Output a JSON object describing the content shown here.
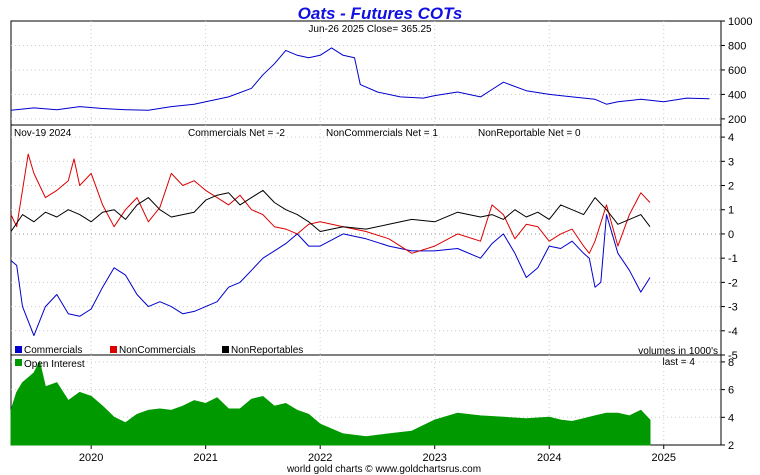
{
  "chart_data": [
    {
      "type": "line",
      "panel": "price",
      "title": "Oats - Futures COTs",
      "subtitle": "Jun-26  2025   Close= 365.25",
      "ylim": [
        150,
        1000
      ],
      "yticks": [
        "200",
        "400",
        "600",
        "800",
        "1000"
      ],
      "series": [
        {
          "color": "#0000cc",
          "x": [
            2019.3,
            2019.5,
            2019.7,
            2019.9,
            2020.1,
            2020.3,
            2020.5,
            2020.7,
            2020.9,
            2021.0,
            2021.2,
            2021.4,
            2021.5,
            2021.6,
            2021.7,
            2021.8,
            2021.9,
            2022.0,
            2022.1,
            2022.2,
            2022.3,
            2022.35,
            2022.5,
            2022.7,
            2022.9,
            2023.0,
            2023.2,
            2023.4,
            2023.5,
            2023.6,
            2023.8,
            2024.0,
            2024.2,
            2024.4,
            2024.5,
            2024.6,
            2024.8,
            2025.0,
            2025.2,
            2025.4
          ],
          "y": [
            270,
            290,
            275,
            300,
            285,
            275,
            270,
            300,
            320,
            340,
            380,
            450,
            560,
            650,
            760,
            720,
            700,
            720,
            780,
            720,
            700,
            480,
            420,
            380,
            370,
            390,
            420,
            380,
            440,
            500,
            430,
            400,
            380,
            360,
            320,
            340,
            360,
            340,
            370,
            365
          ]
        }
      ]
    },
    {
      "type": "line",
      "panel": "cot",
      "date_label": "Nov-19  2024",
      "labels": [
        "Commercials Net = -2",
        "NonCommercials Net = 1",
        "NonReportable Net = 0"
      ],
      "ylim": [
        -5,
        4.5
      ],
      "yticks": [
        "4",
        "3",
        "2",
        "1",
        "0",
        "-1",
        "-2",
        "-3",
        "-4",
        "-5"
      ],
      "legend": [
        "Commercials",
        "NonCommercials",
        "NonReportables"
      ],
      "note": "volumes in 1000's",
      "series": [
        {
          "name": "Commercials",
          "color": "#0000cc",
          "x": [
            2019.3,
            2019.35,
            2019.4,
            2019.5,
            2019.6,
            2019.7,
            2019.8,
            2019.9,
            2020.0,
            2020.1,
            2020.2,
            2020.3,
            2020.4,
            2020.5,
            2020.6,
            2020.7,
            2020.8,
            2020.9,
            2021.0,
            2021.1,
            2021.2,
            2021.3,
            2021.4,
            2021.5,
            2021.6,
            2021.7,
            2021.8,
            2021.9,
            2022.0,
            2022.2,
            2022.4,
            2022.6,
            2022.8,
            2023.0,
            2023.2,
            2023.4,
            2023.5,
            2023.6,
            2023.7,
            2023.8,
            2023.9,
            2024.0,
            2024.1,
            2024.2,
            2024.3,
            2024.35,
            2024.4,
            2024.45,
            2024.5,
            2024.6,
            2024.7,
            2024.8,
            2024.88
          ],
          "y": [
            -1.1,
            -1.3,
            -3.0,
            -4.2,
            -3.0,
            -2.5,
            -3.3,
            -3.4,
            -3.1,
            -2.2,
            -1.4,
            -1.7,
            -2.5,
            -3.0,
            -2.8,
            -3.0,
            -3.3,
            -3.2,
            -3.0,
            -2.8,
            -2.2,
            -2.0,
            -1.5,
            -1.0,
            -0.7,
            -0.4,
            0.0,
            -0.5,
            -0.5,
            0.0,
            -0.2,
            -0.5,
            -0.7,
            -0.7,
            -0.6,
            -1.0,
            -0.4,
            0.0,
            -0.8,
            -1.8,
            -1.4,
            -0.5,
            -0.6,
            -0.3,
            -0.8,
            -1.0,
            -2.2,
            -2.0,
            0.8,
            -0.8,
            -1.5,
            -2.4,
            -1.8
          ]
        },
        {
          "name": "NonCommercials",
          "color": "#dd0000",
          "x": [
            2019.3,
            2019.35,
            2019.45,
            2019.5,
            2019.6,
            2019.7,
            2019.8,
            2019.85,
            2019.9,
            2020.0,
            2020.1,
            2020.2,
            2020.3,
            2020.4,
            2020.5,
            2020.6,
            2020.7,
            2020.8,
            2020.9,
            2021.0,
            2021.1,
            2021.2,
            2021.3,
            2021.4,
            2021.5,
            2021.6,
            2021.7,
            2021.8,
            2021.9,
            2022.0,
            2022.2,
            2022.4,
            2022.6,
            2022.8,
            2023.0,
            2023.2,
            2023.4,
            2023.5,
            2023.6,
            2023.7,
            2023.8,
            2023.9,
            2024.0,
            2024.1,
            2024.2,
            2024.3,
            2024.35,
            2024.4,
            2024.5,
            2024.6,
            2024.7,
            2024.8,
            2024.88
          ],
          "y": [
            0.8,
            0.3,
            3.3,
            2.5,
            1.5,
            1.8,
            2.2,
            3.1,
            2.0,
            2.5,
            1.2,
            0.3,
            1.0,
            1.5,
            0.5,
            1.1,
            2.5,
            2.0,
            2.2,
            1.8,
            1.5,
            1.2,
            1.6,
            1.0,
            0.8,
            0.3,
            0.2,
            0.0,
            0.4,
            0.5,
            0.3,
            0.1,
            -0.2,
            -0.8,
            -0.5,
            0.0,
            -0.3,
            1.2,
            0.8,
            -0.2,
            0.4,
            0.3,
            -0.3,
            0.0,
            0.2,
            -0.5,
            -0.8,
            -0.3,
            1.2,
            -0.5,
            0.8,
            1.7,
            1.3
          ]
        },
        {
          "name": "NonReportables",
          "color": "#000000",
          "x": [
            2019.3,
            2019.4,
            2019.5,
            2019.6,
            2019.7,
            2019.8,
            2019.9,
            2020.0,
            2020.1,
            2020.2,
            2020.3,
            2020.4,
            2020.5,
            2020.6,
            2020.7,
            2020.8,
            2020.9,
            2021.0,
            2021.1,
            2021.2,
            2021.3,
            2021.4,
            2021.5,
            2021.6,
            2021.7,
            2021.8,
            2021.9,
            2022.0,
            2022.2,
            2022.4,
            2022.6,
            2022.8,
            2023.0,
            2023.2,
            2023.4,
            2023.5,
            2023.6,
            2023.7,
            2023.8,
            2023.9,
            2024.0,
            2024.1,
            2024.2,
            2024.3,
            2024.4,
            2024.5,
            2024.6,
            2024.7,
            2024.8,
            2024.88
          ],
          "y": [
            0.1,
            0.8,
            0.5,
            0.9,
            0.7,
            1.0,
            0.8,
            0.5,
            0.9,
            1.0,
            0.6,
            1.2,
            1.5,
            1.0,
            0.7,
            0.8,
            0.9,
            1.4,
            1.6,
            1.7,
            1.2,
            1.5,
            1.8,
            1.3,
            1.0,
            0.8,
            0.5,
            0.1,
            0.3,
            0.2,
            0.4,
            0.6,
            0.5,
            0.9,
            0.7,
            0.8,
            0.6,
            1.0,
            0.7,
            0.9,
            0.6,
            1.2,
            1.0,
            0.8,
            1.5,
            1.0,
            0.4,
            0.6,
            0.8,
            0.3
          ]
        }
      ]
    },
    {
      "type": "area",
      "panel": "open_interest",
      "legend": [
        "Open Interest"
      ],
      "note": "last = 4",
      "ylim": [
        2,
        8.5
      ],
      "yticks": [
        "2",
        "4",
        "6",
        "8"
      ],
      "xticks": [
        "2020",
        "2021",
        "2022",
        "2023",
        "2024",
        "2025"
      ],
      "series": [
        {
          "name": "Open Interest",
          "color": "#009900",
          "x": [
            2019.3,
            2019.35,
            2019.4,
            2019.5,
            2019.55,
            2019.6,
            2019.7,
            2019.8,
            2019.9,
            2020.0,
            2020.1,
            2020.2,
            2020.3,
            2020.4,
            2020.5,
            2020.6,
            2020.7,
            2020.8,
            2020.9,
            2021.0,
            2021.1,
            2021.2,
            2021.3,
            2021.4,
            2021.5,
            2021.6,
            2021.7,
            2021.8,
            2021.9,
            2022.0,
            2022.2,
            2022.4,
            2022.6,
            2022.8,
            2023.0,
            2023.2,
            2023.4,
            2023.6,
            2023.8,
            2024.0,
            2024.1,
            2024.2,
            2024.3,
            2024.4,
            2024.5,
            2024.6,
            2024.7,
            2024.8,
            2024.88
          ],
          "y": [
            4.5,
            5.8,
            6.5,
            7.2,
            8.0,
            6.2,
            6.5,
            5.2,
            5.8,
            5.5,
            4.8,
            4.0,
            3.6,
            4.2,
            4.5,
            4.6,
            4.5,
            4.8,
            5.2,
            5.0,
            5.4,
            4.6,
            4.6,
            5.3,
            5.5,
            4.8,
            5.0,
            4.5,
            4.2,
            3.5,
            2.8,
            2.6,
            2.8,
            3.0,
            3.8,
            4.3,
            4.1,
            4.0,
            3.9,
            4.0,
            3.8,
            3.7,
            3.9,
            4.1,
            4.3,
            4.3,
            4.1,
            4.5,
            3.8
          ]
        }
      ]
    }
  ],
  "footer": "world gold charts © www.goldchartsrus.com"
}
